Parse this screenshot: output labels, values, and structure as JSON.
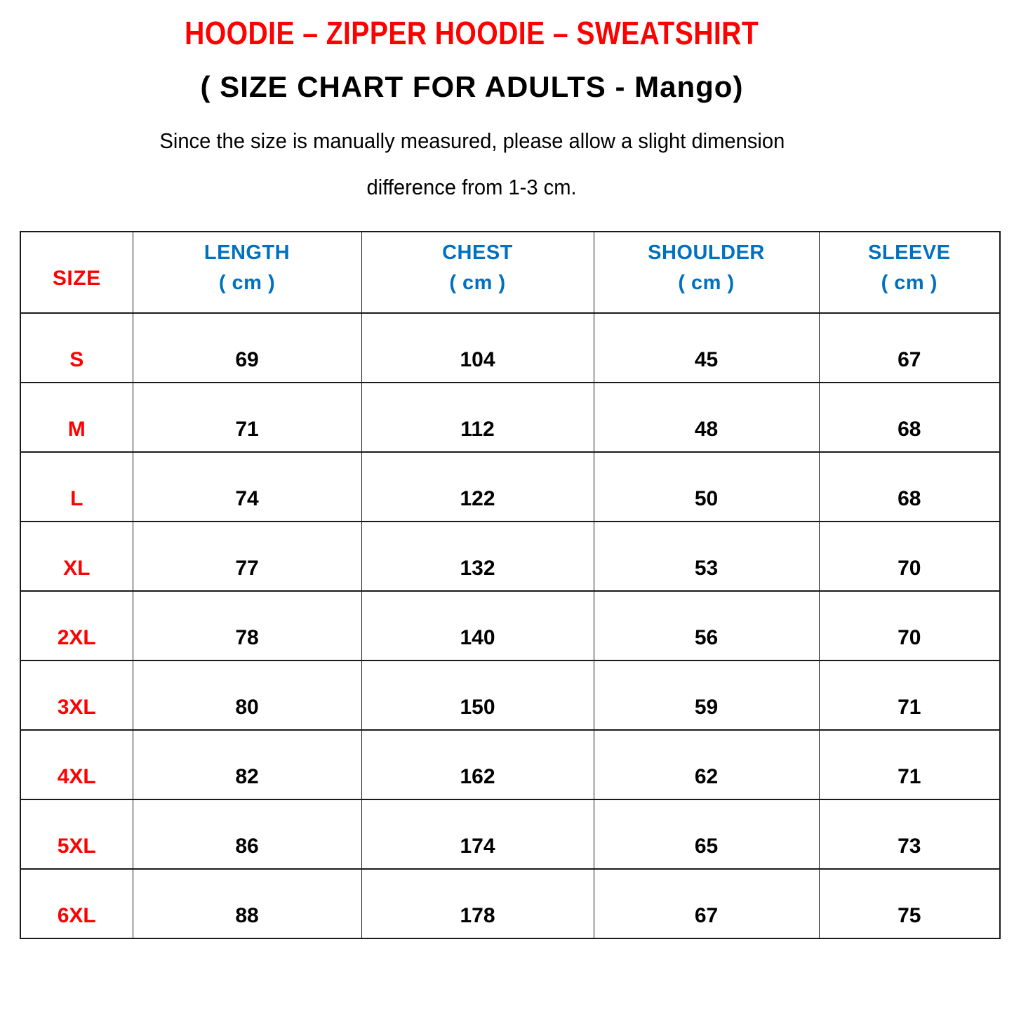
{
  "header": {
    "title": "HOODIE – ZIPPER HOODIE – SWEATSHIRT",
    "subtitle": "( SIZE CHART FOR ADULTS - Mango)",
    "note_line1": "Since the size is manually measured, please allow a slight dimension",
    "note_line2": "difference from 1-3 cm."
  },
  "colors": {
    "title_red": "#FF0000",
    "header_blue": "#0070C0",
    "value_black": "#000000",
    "border_black": "#1A1A1A",
    "background": "#FFFFFF"
  },
  "table": {
    "size_header": "SIZE",
    "columns": [
      {
        "label": "LENGTH",
        "unit": "( cm )"
      },
      {
        "label": "CHEST",
        "unit": "( cm )"
      },
      {
        "label": "SHOULDER",
        "unit": "( cm )"
      },
      {
        "label": "SLEEVE",
        "unit": "( cm )"
      }
    ],
    "rows": [
      {
        "size": "S",
        "length": "69",
        "chest": "104",
        "shoulder": "45",
        "sleeve": "67"
      },
      {
        "size": "M",
        "length": "71",
        "chest": "112",
        "shoulder": "48",
        "sleeve": "68"
      },
      {
        "size": "L",
        "length": "74",
        "chest": "122",
        "shoulder": "50",
        "sleeve": "68"
      },
      {
        "size": "XL",
        "length": "77",
        "chest": "132",
        "shoulder": "53",
        "sleeve": "70"
      },
      {
        "size": "2XL",
        "length": "78",
        "chest": "140",
        "shoulder": "56",
        "sleeve": "70"
      },
      {
        "size": "3XL",
        "length": "80",
        "chest": "150",
        "shoulder": "59",
        "sleeve": "71"
      },
      {
        "size": "4XL",
        "length": "82",
        "chest": "162",
        "shoulder": "62",
        "sleeve": "71"
      },
      {
        "size": "5XL",
        "length": "86",
        "chest": "174",
        "shoulder": "65",
        "sleeve": "73"
      },
      {
        "size": "6XL",
        "length": "88",
        "chest": "178",
        "shoulder": "67",
        "sleeve": "75"
      }
    ]
  },
  "chart_data": {
    "type": "table",
    "title": "HOODIE – ZIPPER HOODIE – SWEATSHIRT",
    "subtitle": "( SIZE CHART FOR ADULTS - Mango)",
    "columns": [
      "SIZE",
      "LENGTH ( cm )",
      "CHEST ( cm )",
      "SHOULDER ( cm )",
      "SLEEVE ( cm )"
    ],
    "rows": [
      [
        "S",
        69,
        104,
        45,
        67
      ],
      [
        "M",
        71,
        112,
        48,
        68
      ],
      [
        "L",
        74,
        122,
        50,
        68
      ],
      [
        "XL",
        77,
        132,
        53,
        70
      ],
      [
        "2XL",
        78,
        140,
        56,
        70
      ],
      [
        "3XL",
        80,
        150,
        59,
        71
      ],
      [
        "4XL",
        82,
        162,
        62,
        71
      ],
      [
        "5XL",
        86,
        174,
        65,
        73
      ],
      [
        "6XL",
        88,
        178,
        67,
        75
      ]
    ]
  }
}
